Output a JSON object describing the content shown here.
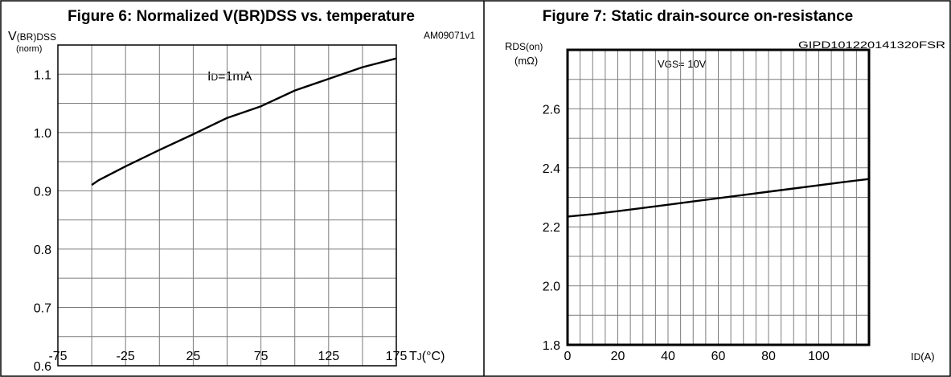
{
  "chart_data": [
    {
      "type": "line",
      "title": "Figure 6: Normalized V(BR)DSS vs. temperature",
      "doc_code": "AM09071v1",
      "ylabel": {
        "main": "V",
        "sub": "(BR)DSS",
        "unit": "(norm)"
      },
      "xlabel": {
        "main": "T",
        "sub": "J",
        "unit": "(°C)"
      },
      "annotation": {
        "main": "I",
        "sub": "D",
        "rest": "=1mA"
      },
      "xlim": [
        -75,
        175
      ],
      "ylim": [
        0.6,
        1.15
      ],
      "xticks": [
        "-75",
        "-25",
        "25",
        "75",
        "125",
        "175"
      ],
      "yticks": [
        "0.6",
        "0.7",
        "0.8",
        "0.9",
        "1.0",
        "1.1"
      ],
      "grid": true,
      "series": [
        {
          "x": [
            -50,
            -45,
            -25,
            0,
            25,
            50,
            75,
            100,
            125,
            150,
            175
          ],
          "y": [
            0.91,
            0.918,
            0.942,
            0.97,
            0.997,
            1.025,
            1.045,
            1.072,
            1.092,
            1.112,
            1.127
          ]
        }
      ]
    },
    {
      "type": "line",
      "title": "Figure 7: Static drain-source on-resistance",
      "doc_code": "GIPD101220141320FSR",
      "ylabel": {
        "main": "R",
        "sub": "DS(on)",
        "unit": "(mΩ)"
      },
      "xlabel": {
        "main": "I",
        "sub": "D",
        "unit": "(A)"
      },
      "annotation": {
        "main": "V",
        "sub": "GS",
        "rest": "= 10V"
      },
      "xlim": [
        0,
        120
      ],
      "ylim": [
        1.8,
        2.8
      ],
      "xticks": [
        "0",
        "20",
        "40",
        "60",
        "80",
        "100"
      ],
      "yticks": [
        "1.8",
        "2.0",
        "2.2",
        "2.4",
        "2.6"
      ],
      "grid": true,
      "series": [
        {
          "x": [
            0,
            10,
            20,
            30,
            40,
            50,
            60,
            70,
            80,
            90,
            100,
            110,
            120
          ],
          "y": [
            2.235,
            2.243,
            2.253,
            2.264,
            2.275,
            2.286,
            2.297,
            2.308,
            2.319,
            2.33,
            2.341,
            2.352,
            2.362
          ]
        }
      ]
    }
  ]
}
